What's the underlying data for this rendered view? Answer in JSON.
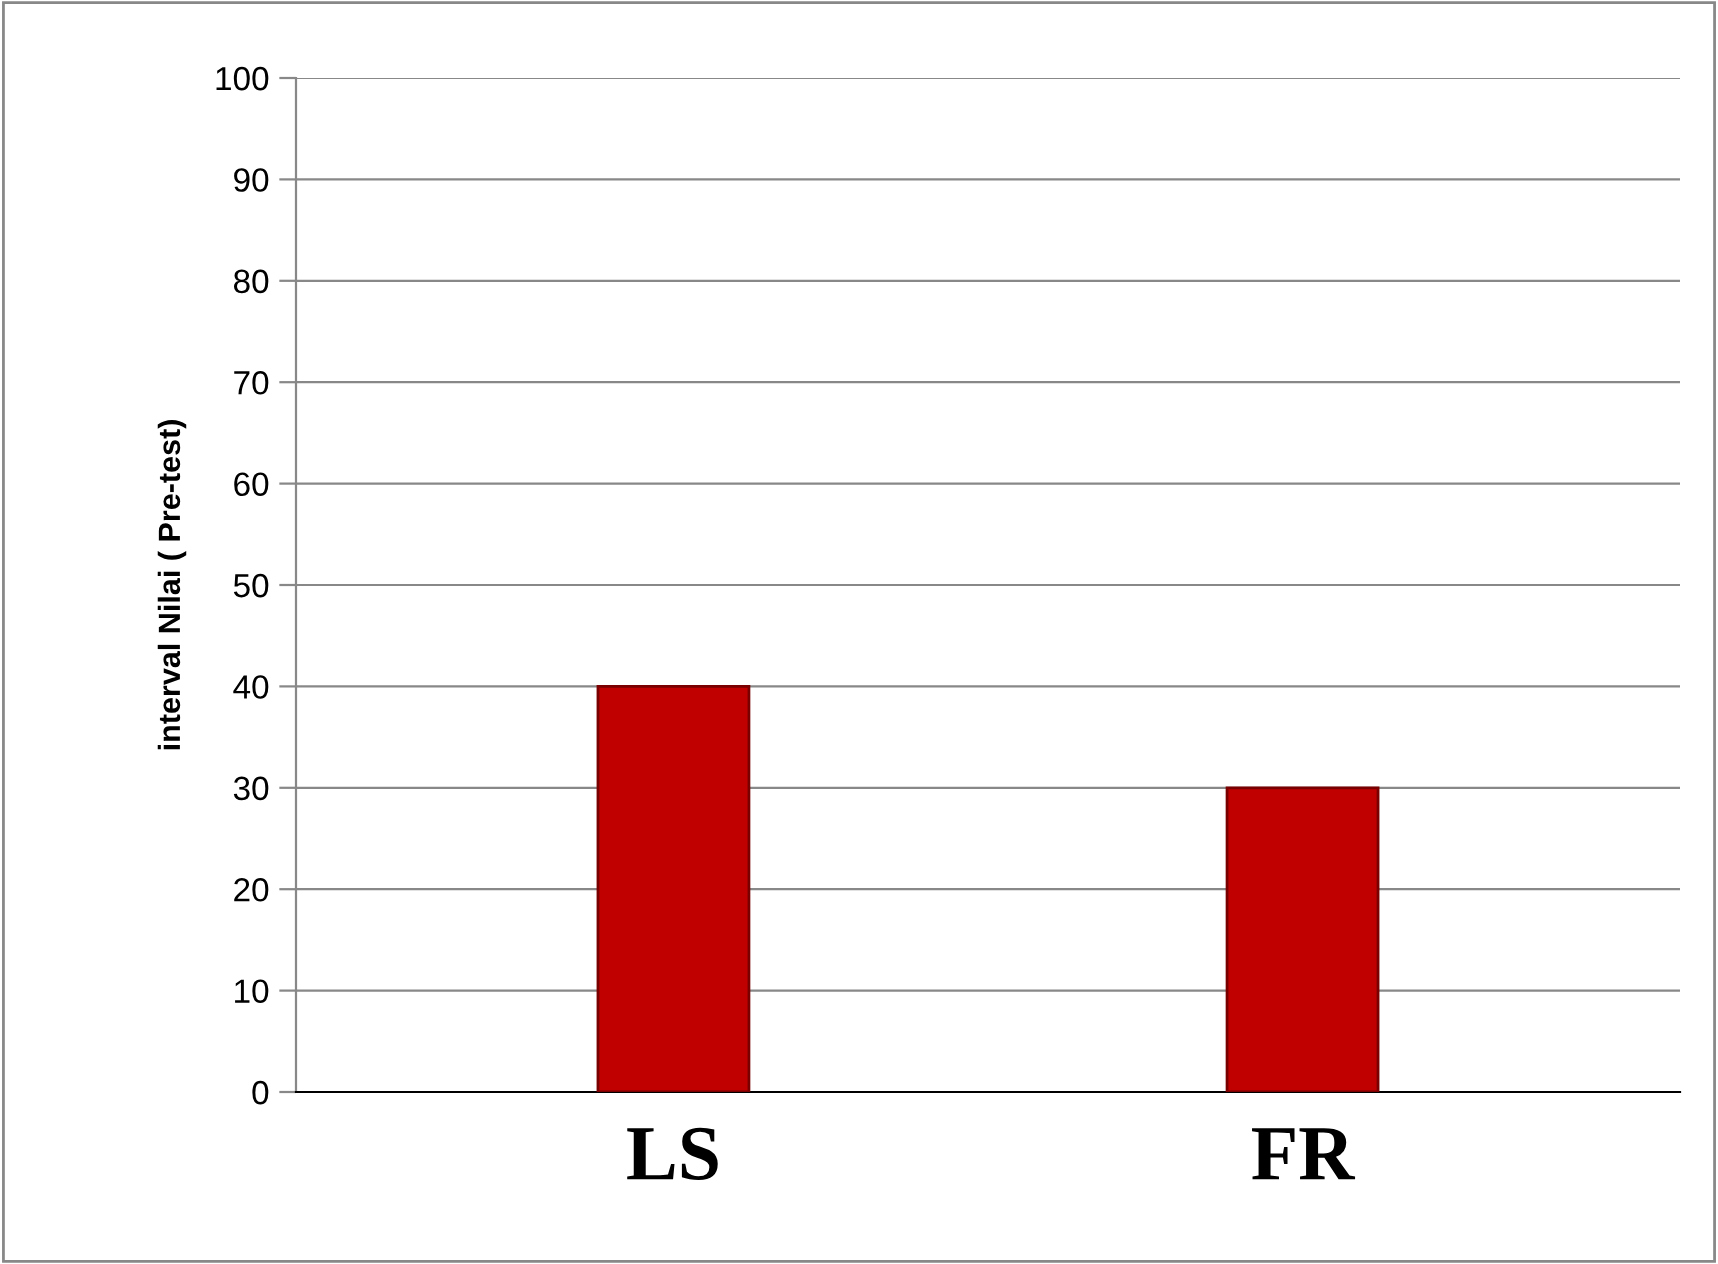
{
  "chart_data": {
    "type": "bar",
    "ylabel": "interval Nilai ( Pre-test)",
    "categories": [
      "LS",
      "FR"
    ],
    "values": [
      40,
      30
    ],
    "color": "#c00000",
    "ylim": [
      0,
      100
    ],
    "yticks": [
      0,
      10,
      20,
      30,
      40,
      50,
      60,
      70,
      80,
      90,
      100
    ],
    "grid": "y"
  }
}
